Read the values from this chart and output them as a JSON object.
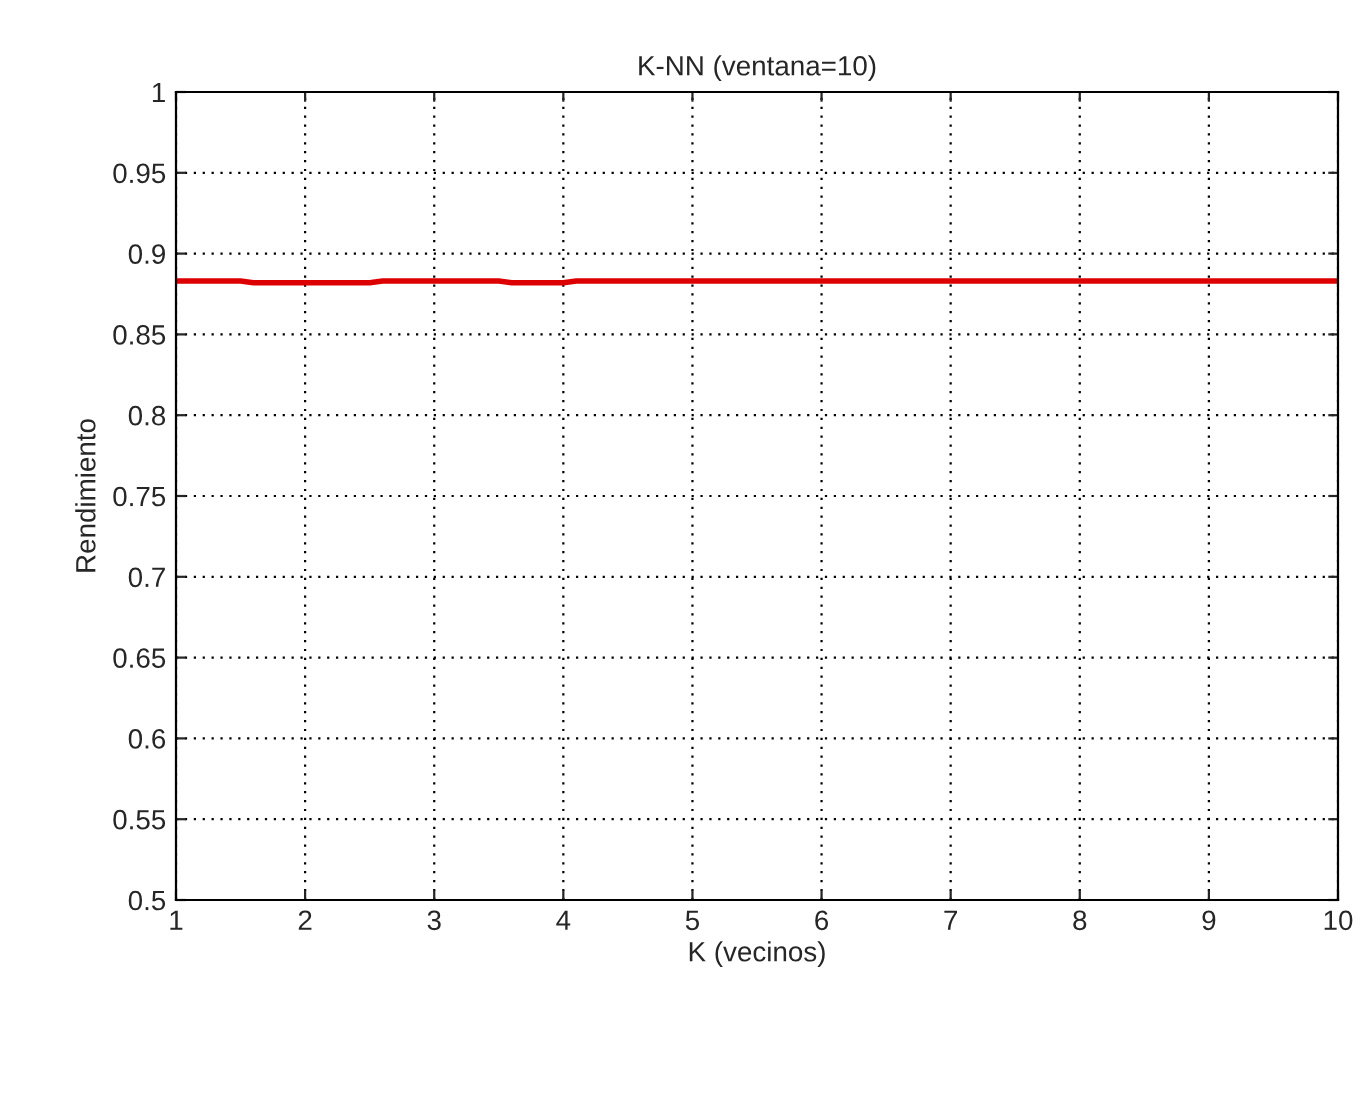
{
  "chart_data": {
    "type": "line",
    "title": "K-NN (ventana=10)",
    "xlabel": "K (vecinos)",
    "ylabel": "Rendimiento",
    "series": [
      {
        "color": "#dd0000",
        "x": [
          1,
          1.5,
          1.6,
          2.5,
          2.6,
          3.5,
          3.6,
          4,
          4.1,
          5,
          6,
          7,
          8,
          9,
          10
        ],
        "values": [
          0.883,
          0.883,
          0.882,
          0.882,
          0.883,
          0.883,
          0.882,
          0.882,
          0.883,
          0.883,
          0.883,
          0.883,
          0.883,
          0.883,
          0.883
        ]
      }
    ],
    "xlim": [
      1,
      10
    ],
    "xticks": [
      1,
      2,
      3,
      4,
      5,
      6,
      7,
      8,
      9,
      10
    ],
    "ylim": [
      0.5,
      1
    ],
    "yticks": [
      0.5,
      0.55,
      0.6,
      0.65,
      0.7,
      0.75,
      0.8,
      0.85,
      0.9,
      0.95,
      1
    ],
    "grid": true,
    "marker": "none",
    "line_style": "solid"
  }
}
